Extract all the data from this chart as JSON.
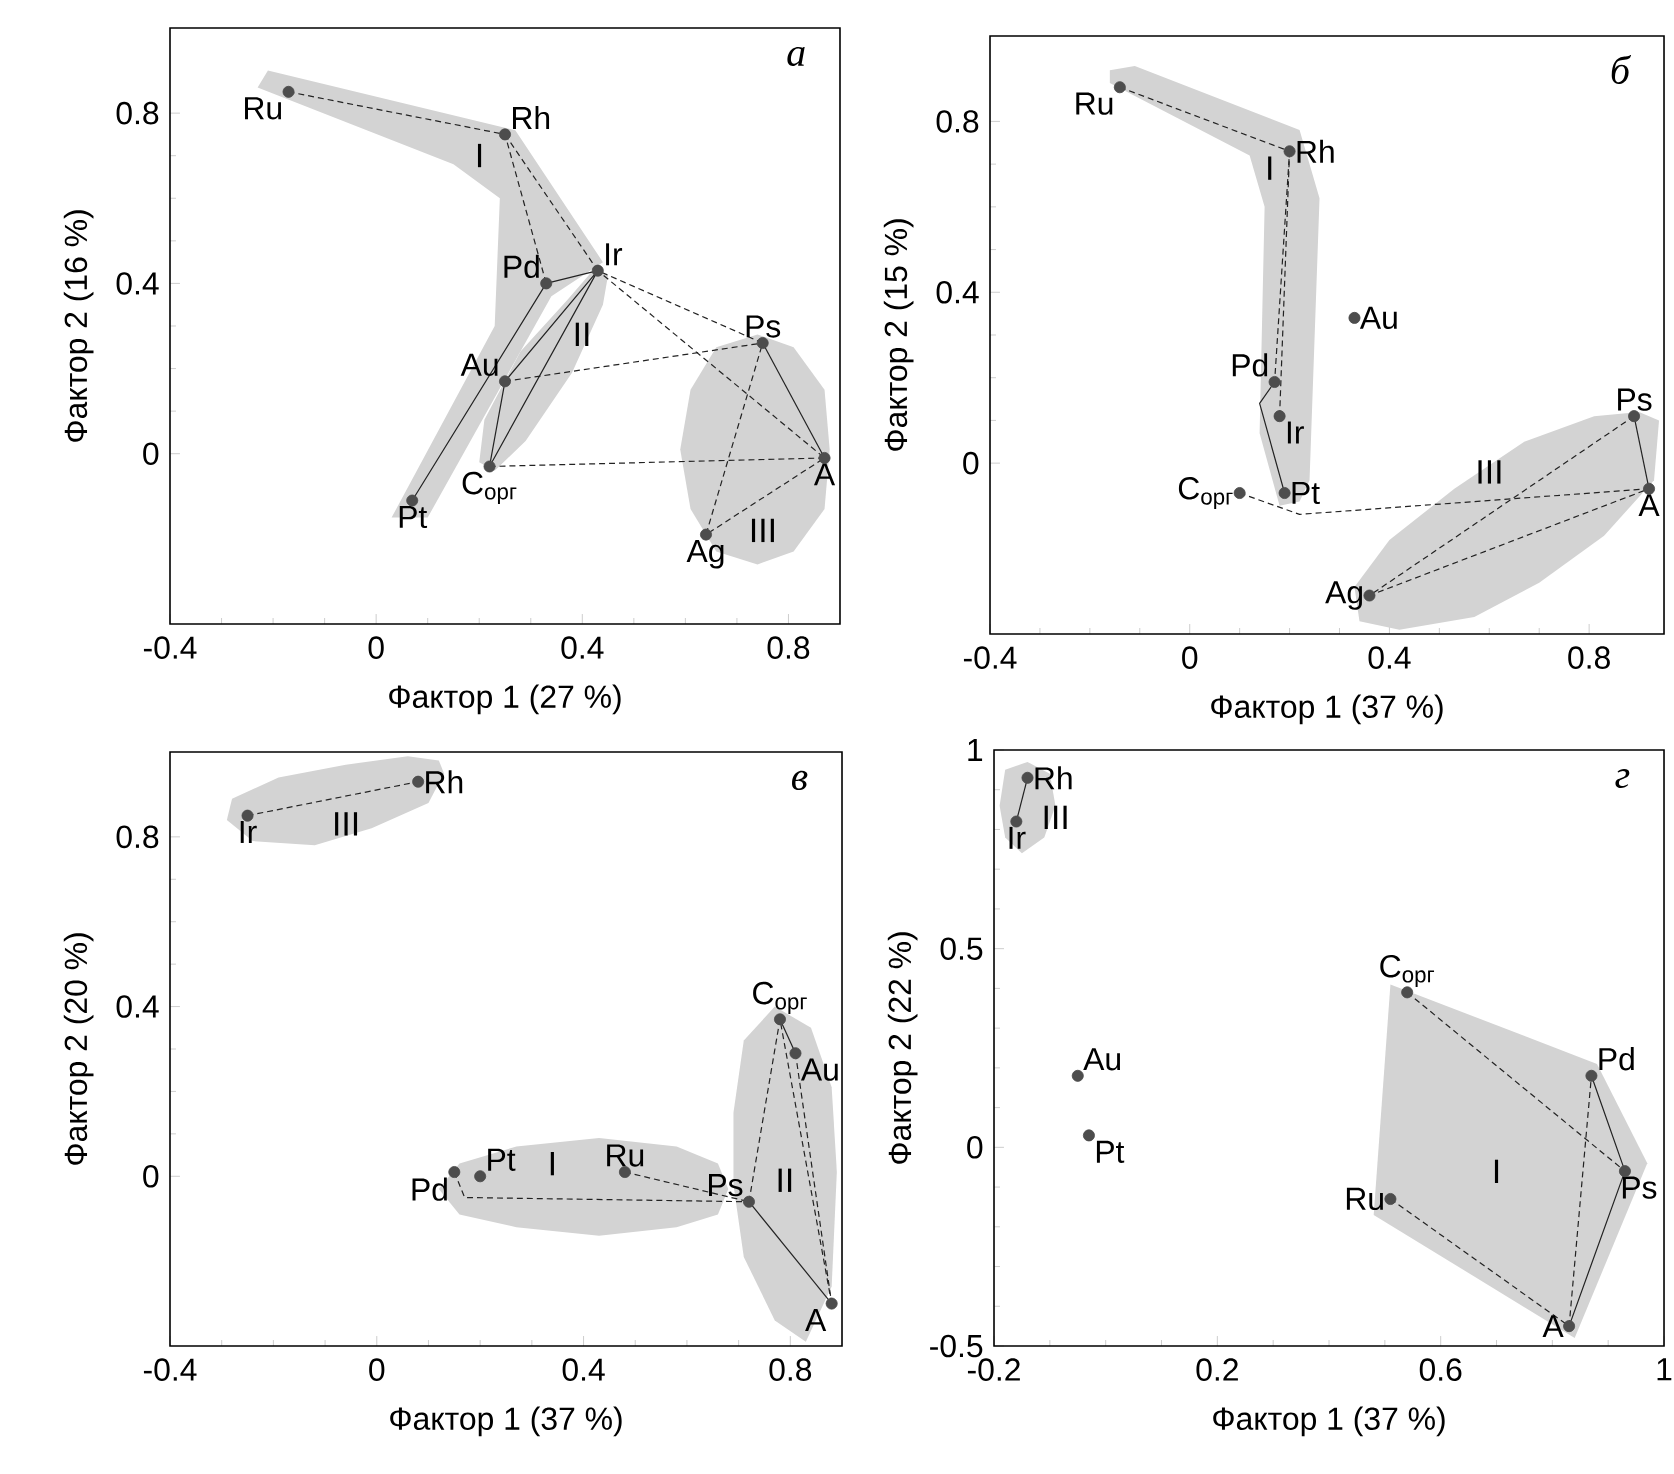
{
  "chart_data": [
    {
      "type": "scatter",
      "title": "а",
      "xlabel": "Фактор 1 (27 %)",
      "ylabel": "Фактор 2 (16 %)",
      "xlim": [
        -0.4,
        0.9
      ],
      "ylim": [
        -0.4,
        1.0
      ],
      "xticks": [
        -0.4,
        0,
        0.4,
        0.8
      ],
      "yticks": [
        0,
        0.4,
        0.8
      ],
      "series": [
        {
          "type": "area",
          "color": "#d3d3d3",
          "x": [
            -0.23,
            -0.21,
            0.27,
            0.44,
            0.34,
            0.1,
            0.03,
            0.23,
            0.24,
            0.15
          ],
          "values": [
            0.86,
            0.9,
            0.76,
            0.45,
            0.37,
            -0.15,
            -0.15,
            0.3,
            0.6,
            0.68
          ]
        },
        {
          "type": "area",
          "color": "#d3d3d3",
          "x": [
            0.45,
            0.44,
            0.38,
            0.29,
            0.23,
            0.2,
            0.21,
            0.28,
            0.37,
            0.42
          ],
          "values": [
            0.42,
            0.35,
            0.19,
            0.03,
            -0.04,
            -0.02,
            0.08,
            0.24,
            0.36,
            0.43
          ]
        },
        {
          "type": "area",
          "color": "#d3d3d3",
          "x": [
            0.88,
            0.87,
            0.81,
            0.74,
            0.66,
            0.61,
            0.59,
            0.61,
            0.66,
            0.74,
            0.81,
            0.87
          ],
          "values": [
            0.01,
            0.15,
            0.25,
            0.28,
            0.25,
            0.15,
            0.01,
            -0.13,
            -0.23,
            -0.26,
            -0.23,
            -0.13
          ]
        },
        {
          "type": "line",
          "color": "#222222",
          "line_style": "dashed",
          "marker": "none",
          "x": [
            -0.17,
            0.25,
            0.33
          ],
          "values": [
            0.85,
            0.75,
            0.4
          ]
        },
        {
          "type": "line",
          "color": "#222222",
          "line_style": "dashed",
          "marker": "none",
          "x": [
            0.25,
            0.43,
            0.75,
            0.64,
            0.87,
            0.43
          ],
          "values": [
            0.75,
            0.43,
            0.26,
            -0.19,
            -0.01,
            0.43
          ]
        },
        {
          "type": "line",
          "color": "#222222",
          "line_style": "dashed",
          "marker": "none",
          "x": [
            0.25,
            0.75
          ],
          "values": [
            0.17,
            0.26
          ]
        },
        {
          "type": "line",
          "color": "#222222",
          "line_style": "dashed",
          "marker": "none",
          "x": [
            0.22,
            0.87
          ],
          "values": [
            -0.03,
            -0.01
          ]
        },
        {
          "type": "line",
          "color": "#222222",
          "line_style": "solid",
          "marker": "none",
          "x": [
            0.07,
            0.33,
            0.43,
            0.25,
            0.22,
            0.43
          ],
          "values": [
            -0.11,
            0.4,
            0.43,
            0.17,
            -0.03,
            0.43
          ]
        },
        {
          "type": "line",
          "color": "#222222",
          "line_style": "solid",
          "marker": "none",
          "x": [
            0.75,
            0.87
          ],
          "values": [
            0.26,
            -0.01
          ]
        },
        {
          "name": "Ru",
          "color": "#4d4d4d",
          "marker": "circle",
          "x": [
            -0.17
          ],
          "values": [
            0.85
          ]
        },
        {
          "name": "Rh",
          "color": "#4d4d4d",
          "marker": "circle",
          "x": [
            0.25
          ],
          "values": [
            0.75
          ]
        },
        {
          "name": "Ir",
          "color": "#4d4d4d",
          "marker": "circle",
          "x": [
            0.43
          ],
          "values": [
            0.43
          ]
        },
        {
          "name": "Pd",
          "color": "#4d4d4d",
          "marker": "circle",
          "x": [
            0.33
          ],
          "values": [
            0.4
          ]
        },
        {
          "name": "Au",
          "color": "#4d4d4d",
          "marker": "circle",
          "x": [
            0.25
          ],
          "values": [
            0.17
          ]
        },
        {
          "name": "C$_{орг}$",
          "color": "#4d4d4d",
          "marker": "circle",
          "x": [
            0.22
          ],
          "values": [
            -0.03
          ]
        },
        {
          "name": "Pt",
          "color": "#4d4d4d",
          "marker": "circle",
          "x": [
            0.07
          ],
          "values": [
            -0.11
          ]
        },
        {
          "name": "Ps",
          "color": "#4d4d4d",
          "marker": "circle",
          "x": [
            0.75
          ],
          "values": [
            0.26
          ]
        },
        {
          "name": "A",
          "color": "#4d4d4d",
          "marker": "circle",
          "x": [
            0.87
          ],
          "values": [
            -0.01
          ]
        },
        {
          "name": "Ag",
          "color": "#4d4d4d",
          "marker": "circle",
          "x": [
            0.64
          ],
          "values": [
            -0.19
          ]
        }
      ],
      "annotations": [
        "I",
        "II",
        "III"
      ]
    },
    {
      "type": "scatter",
      "title": "б",
      "xlabel": "Фактор 1 (37 %)",
      "ylabel": "Фактор 2 (15 %)",
      "xlim": [
        -0.4,
        0.95
      ],
      "ylim": [
        -0.4,
        1.0
      ],
      "xticks": [
        -0.4,
        0,
        0.4,
        0.8
      ],
      "yticks": [
        0,
        0.4,
        0.8
      ],
      "series": [
        {
          "type": "area",
          "color": "#d3d3d3",
          "x": [
            -0.16,
            -0.11,
            0.22,
            0.26,
            0.24,
            0.22,
            0.18,
            0.14,
            0.15,
            0.12,
            -0.16
          ],
          "values": [
            0.92,
            0.93,
            0.78,
            0.62,
            -0.04,
            -0.09,
            -0.1,
            0.07,
            0.6,
            0.72,
            0.89
          ]
        },
        {
          "type": "area",
          "color": "#d3d3d3",
          "x": [
            0.94,
            0.93,
            0.83,
            0.7,
            0.57,
            0.42,
            0.34,
            0.33,
            0.4,
            0.53,
            0.67,
            0.81,
            0.9
          ],
          "values": [
            0.1,
            -0.04,
            -0.17,
            -0.28,
            -0.36,
            -0.39,
            -0.37,
            -0.29,
            -0.18,
            -0.06,
            0.05,
            0.11,
            0.12
          ]
        },
        {
          "type": "line",
          "color": "#222222",
          "line_style": "dashed",
          "marker": "none",
          "x": [
            -0.14,
            0.2,
            0.17
          ],
          "values": [
            0.88,
            0.73,
            0.19
          ]
        },
        {
          "type": "line",
          "color": "#222222",
          "line_style": "dashed",
          "marker": "none",
          "x": [
            0.2,
            0.18
          ],
          "values": [
            0.73,
            0.11
          ]
        },
        {
          "type": "line",
          "color": "#222222",
          "line_style": "dashed",
          "marker": "none",
          "x": [
            0.1,
            0.22,
            0.92
          ],
          "values": [
            -0.07,
            -0.12,
            -0.06
          ]
        },
        {
          "type": "line",
          "color": "#222222",
          "line_style": "dashed",
          "marker": "none",
          "x": [
            0.89,
            0.36,
            0.92
          ],
          "values": [
            0.11,
            -0.31,
            -0.06
          ]
        },
        {
          "type": "line",
          "color": "#222222",
          "line_style": "solid",
          "marker": "none",
          "x": [
            0.17,
            0.14,
            0.19
          ],
          "values": [
            0.19,
            0.14,
            -0.07
          ]
        },
        {
          "type": "line",
          "color": "#222222",
          "line_style": "solid",
          "marker": "none",
          "x": [
            0.89,
            0.92
          ],
          "values": [
            0.11,
            -0.06
          ]
        },
        {
          "name": "Ru",
          "color": "#4d4d4d",
          "marker": "circle",
          "x": [
            -0.14
          ],
          "values": [
            0.88
          ]
        },
        {
          "name": "Rh",
          "color": "#4d4d4d",
          "marker": "circle",
          "x": [
            0.2
          ],
          "values": [
            0.73
          ]
        },
        {
          "name": "Au",
          "color": "#4d4d4d",
          "marker": "circle",
          "x": [
            0.33
          ],
          "values": [
            0.34
          ]
        },
        {
          "name": "Pd",
          "color": "#4d4d4d",
          "marker": "circle",
          "x": [
            0.17
          ],
          "values": [
            0.19
          ]
        },
        {
          "name": "Ir",
          "color": "#4d4d4d",
          "marker": "circle",
          "x": [
            0.18
          ],
          "values": [
            0.11
          ]
        },
        {
          "name": "Pt",
          "color": "#4d4d4d",
          "marker": "circle",
          "x": [
            0.19
          ],
          "values": [
            -0.07
          ]
        },
        {
          "name": "C$_{орг}$",
          "color": "#4d4d4d",
          "marker": "circle",
          "x": [
            0.1
          ],
          "values": [
            -0.07
          ]
        },
        {
          "name": "Ps",
          "color": "#4d4d4d",
          "marker": "circle",
          "x": [
            0.89
          ],
          "values": [
            0.11
          ]
        },
        {
          "name": "A",
          "color": "#4d4d4d",
          "marker": "circle",
          "x": [
            0.92
          ],
          "values": [
            -0.06
          ]
        },
        {
          "name": "Ag",
          "color": "#4d4d4d",
          "marker": "circle",
          "x": [
            0.36
          ],
          "values": [
            -0.31
          ]
        }
      ],
      "annotations": [
        "I",
        "III"
      ]
    },
    {
      "type": "scatter",
      "title": "в",
      "xlabel": "Фактор 1 (37 %)",
      "ylabel": "Фактор 2 (20 %)",
      "xlim": [
        -0.4,
        0.9
      ],
      "ylim": [
        -0.4,
        1.0
      ],
      "xticks": [
        -0.4,
        0,
        0.4,
        0.8
      ],
      "yticks": [
        0,
        0.4,
        0.8
      ],
      "series": [
        {
          "type": "area",
          "color": "#d3d3d3",
          "x": [
            0.13,
            0.1,
            -0.01,
            -0.12,
            -0.24,
            -0.29,
            -0.28,
            -0.19,
            -0.06,
            0.06,
            0.12
          ],
          "values": [
            0.95,
            0.88,
            0.82,
            0.78,
            0.79,
            0.84,
            0.89,
            0.94,
            0.97,
            0.99,
            0.98
          ]
        },
        {
          "type": "area",
          "color": "#d3d3d3",
          "x": [
            0.68,
            0.66,
            0.58,
            0.43,
            0.27,
            0.16,
            0.12,
            0.16,
            0.27,
            0.43,
            0.58,
            0.66
          ],
          "values": [
            -0.03,
            0.03,
            0.07,
            0.09,
            0.07,
            0.03,
            -0.03,
            -0.09,
            -0.12,
            -0.14,
            -0.12,
            -0.09
          ]
        },
        {
          "type": "area",
          "color": "#d3d3d3",
          "x": [
            0.89,
            0.88,
            0.84,
            0.77,
            0.71,
            0.69,
            0.69,
            0.71,
            0.77,
            0.83,
            0.88
          ],
          "values": [
            0.01,
            0.21,
            0.35,
            0.4,
            0.32,
            0.15,
            -0.02,
            -0.19,
            -0.34,
            -0.39,
            -0.26
          ]
        },
        {
          "type": "line",
          "color": "#222222",
          "line_style": "dashed",
          "marker": "none",
          "x": [
            -0.25,
            0.08
          ],
          "values": [
            0.85,
            0.93
          ]
        },
        {
          "type": "line",
          "color": "#222222",
          "line_style": "dashed",
          "marker": "none",
          "x": [
            0.48,
            0.72
          ],
          "values": [
            0.01,
            -0.06
          ]
        },
        {
          "type": "line",
          "color": "#222222",
          "line_style": "dashed",
          "marker": "none",
          "x": [
            0.15,
            0.17,
            0.72
          ],
          "values": [
            0.01,
            -0.05,
            -0.06
          ]
        },
        {
          "type": "line",
          "color": "#222222",
          "line_style": "dashed",
          "marker": "none",
          "x": [
            0.72,
            0.78,
            0.88
          ],
          "values": [
            -0.06,
            0.37,
            -0.3
          ]
        },
        {
          "type": "line",
          "color": "#222222",
          "line_style": "dashed",
          "marker": "none",
          "x": [
            0.81,
            0.88
          ],
          "values": [
            0.29,
            -0.3
          ]
        },
        {
          "type": "line",
          "color": "#222222",
          "line_style": "solid",
          "marker": "none",
          "x": [
            0.78,
            0.81
          ],
          "values": [
            0.37,
            0.29
          ]
        },
        {
          "type": "line",
          "color": "#222222",
          "line_style": "solid",
          "marker": "none",
          "x": [
            0.72,
            0.88
          ],
          "values": [
            -0.06,
            -0.3
          ]
        },
        {
          "name": "Ir",
          "color": "#4d4d4d",
          "marker": "circle",
          "x": [
            -0.25
          ],
          "values": [
            0.85
          ]
        },
        {
          "name": "Rh",
          "color": "#4d4d4d",
          "marker": "circle",
          "x": [
            0.08
          ],
          "values": [
            0.93
          ]
        },
        {
          "name": "C$_{орг}$",
          "color": "#4d4d4d",
          "marker": "circle",
          "x": [
            0.78
          ],
          "values": [
            0.37
          ]
        },
        {
          "name": "Au",
          "color": "#4d4d4d",
          "marker": "circle",
          "x": [
            0.81
          ],
          "values": [
            0.29
          ]
        },
        {
          "name": "Ru",
          "color": "#4d4d4d",
          "marker": "circle",
          "x": [
            0.48
          ],
          "values": [
            0.01
          ]
        },
        {
          "name": "Pt",
          "color": "#4d4d4d",
          "marker": "circle",
          "x": [
            0.2
          ],
          "values": [
            0.0
          ]
        },
        {
          "name": "Pd",
          "color": "#4d4d4d",
          "marker": "circle",
          "x": [
            0.15
          ],
          "values": [
            0.01
          ]
        },
        {
          "name": "Ps",
          "color": "#4d4d4d",
          "marker": "circle",
          "x": [
            0.72
          ],
          "values": [
            -0.06
          ]
        },
        {
          "name": "A",
          "color": "#4d4d4d",
          "marker": "circle",
          "x": [
            0.88
          ],
          "values": [
            -0.3
          ]
        }
      ],
      "annotations": [
        "III",
        "I",
        "II"
      ]
    },
    {
      "type": "scatter",
      "title": "г",
      "xlabel": "Фактор 1 (37 %)",
      "ylabel": "Фактор 2 (22 %)",
      "xlim": [
        -0.2,
        1.0
      ],
      "ylim": [
        -0.5,
        1.0
      ],
      "xticks": [
        -0.2,
        0.2,
        0.6,
        1
      ],
      "yticks": [
        -0.5,
        0,
        0.5,
        1
      ],
      "series": [
        {
          "type": "area",
          "color": "#d3d3d3",
          "x": [
            -0.09,
            -0.1,
            -0.14,
            -0.18,
            -0.19,
            -0.18,
            -0.15,
            -0.11
          ],
          "values": [
            0.86,
            0.94,
            0.97,
            0.95,
            0.86,
            0.78,
            0.74,
            0.78
          ]
        },
        {
          "type": "area",
          "color": "#d3d3d3",
          "x": [
            0.51,
            0.88,
            0.97,
            0.84,
            0.48
          ],
          "values": [
            0.41,
            0.21,
            -0.04,
            -0.48,
            -0.17
          ]
        },
        {
          "type": "line",
          "color": "#222222",
          "line_style": "solid",
          "marker": "none",
          "x": [
            -0.16,
            -0.14
          ],
          "values": [
            0.82,
            0.93
          ]
        },
        {
          "type": "line",
          "color": "#222222",
          "line_style": "solid",
          "marker": "none",
          "x": [
            0.87,
            0.93,
            0.83
          ],
          "values": [
            0.18,
            -0.06,
            -0.45
          ]
        },
        {
          "type": "line",
          "color": "#222222",
          "line_style": "dashed",
          "marker": "none",
          "x": [
            0.54,
            0.93
          ],
          "values": [
            0.39,
            -0.06
          ]
        },
        {
          "type": "line",
          "color": "#222222",
          "line_style": "dashed",
          "marker": "none",
          "x": [
            0.51,
            0.83,
            0.87
          ],
          "values": [
            -0.13,
            -0.45,
            0.18
          ]
        },
        {
          "name": "Rh",
          "color": "#4d4d4d",
          "marker": "circle",
          "x": [
            -0.14
          ],
          "values": [
            0.93
          ]
        },
        {
          "name": "Ir",
          "color": "#4d4d4d",
          "marker": "circle",
          "x": [
            -0.16
          ],
          "values": [
            0.82
          ]
        },
        {
          "name": "Au",
          "color": "#4d4d4d",
          "marker": "circle",
          "x": [
            -0.05
          ],
          "values": [
            0.18
          ]
        },
        {
          "name": "Pt",
          "color": "#4d4d4d",
          "marker": "circle",
          "x": [
            -0.03
          ],
          "values": [
            0.03
          ]
        },
        {
          "name": "C$_{орг}$",
          "color": "#4d4d4d",
          "marker": "circle",
          "x": [
            0.54
          ],
          "values": [
            0.39
          ]
        },
        {
          "name": "Pd",
          "color": "#4d4d4d",
          "marker": "circle",
          "x": [
            0.87
          ],
          "values": [
            0.18
          ]
        },
        {
          "name": "Ps",
          "color": "#4d4d4d",
          "marker": "circle",
          "x": [
            0.93
          ],
          "values": [
            -0.06
          ]
        },
        {
          "name": "Ru",
          "color": "#4d4d4d",
          "marker": "circle",
          "x": [
            0.51
          ],
          "values": [
            -0.13
          ]
        },
        {
          "name": "A",
          "color": "#4d4d4d",
          "marker": "circle",
          "x": [
            0.83
          ],
          "values": [
            -0.45
          ]
        }
      ],
      "annotations": [
        "I",
        "III"
      ]
    }
  ]
}
